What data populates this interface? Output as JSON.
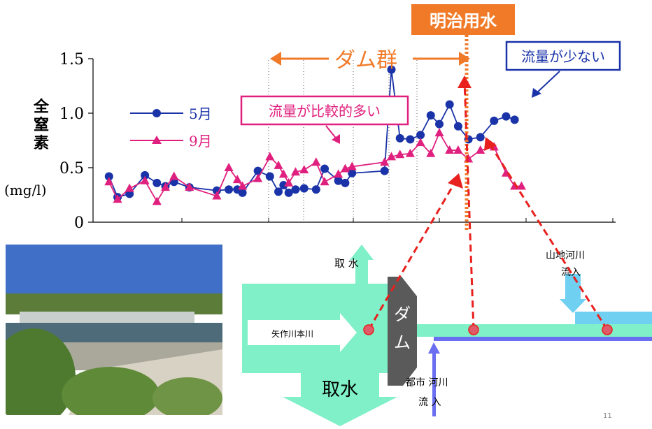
{
  "slide": {
    "page_number": "11"
  },
  "chart_data": {
    "type": "line",
    "ylabel_main": "全窒素",
    "ylabel_unit": "(mg/l)",
    "ylim": [
      0,
      1.5
    ],
    "yticks": [
      "0",
      "0.5",
      "1.0",
      "1.5"
    ],
    "xlim": [
      0,
      30
    ],
    "grid": false,
    "legend_position": "left-middle",
    "series": [
      {
        "name": "5月",
        "color": "#1a33a8",
        "marker": "circle",
        "x": [
          0.4,
          0.9,
          1.6,
          2.5,
          3.2,
          3.7,
          4.2,
          5.1,
          6.7,
          7.4,
          7.9,
          8.2,
          9.1,
          9.8,
          10.3,
          10.6,
          10.9,
          11.3,
          11.8,
          12.5,
          13.0,
          13.8,
          14.2,
          14.6,
          16.5,
          16.9,
          17.4,
          18.0,
          18.6,
          19.2,
          19.7,
          20.3,
          20.8,
          21.4,
          22.1,
          22.9,
          23.6,
          24.1
        ],
        "values": [
          0.42,
          0.23,
          0.26,
          0.43,
          0.36,
          0.33,
          0.37,
          0.32,
          0.29,
          0.3,
          0.3,
          0.27,
          0.47,
          0.42,
          0.28,
          0.34,
          0.27,
          0.3,
          0.31,
          0.3,
          0.49,
          0.38,
          0.36,
          0.45,
          0.47,
          1.4,
          0.77,
          0.76,
          0.8,
          0.98,
          0.9,
          1.08,
          0.88,
          0.76,
          0.78,
          0.93,
          0.97,
          0.94
        ]
      },
      {
        "name": "9月",
        "color": "#e0207e",
        "marker": "triangle",
        "x": [
          0.4,
          0.9,
          1.6,
          2.5,
          3.2,
          3.7,
          4.2,
          5.1,
          6.7,
          7.4,
          7.9,
          8.2,
          9.1,
          9.8,
          10.3,
          10.6,
          10.9,
          11.3,
          11.8,
          12.5,
          13.0,
          13.8,
          14.2,
          14.6,
          16.5,
          16.9,
          17.4,
          18.0,
          18.6,
          19.2,
          19.7,
          20.3,
          20.8,
          21.4,
          22.1,
          22.9,
          23.6,
          24.1,
          24.5
        ],
        "values": [
          0.37,
          0.21,
          0.31,
          0.38,
          0.19,
          0.32,
          0.42,
          0.32,
          0.24,
          0.5,
          0.39,
          0.33,
          0.4,
          0.6,
          0.52,
          0.44,
          0.36,
          0.46,
          0.48,
          0.55,
          0.37,
          0.44,
          0.49,
          0.51,
          0.55,
          0.6,
          0.62,
          0.63,
          0.73,
          0.63,
          0.82,
          0.66,
          0.66,
          0.58,
          0.66,
          0.69,
          0.45,
          0.33,
          0.33
        ]
      }
    ],
    "annotations": {
      "dam_group": "ダム群",
      "meiji_canal": "明治用水",
      "low_flow": "流量が少ない",
      "relatively_high_flow": "流量が比較的多い"
    }
  },
  "diagram": {
    "main_river": "矢作川本川",
    "dam": "ダム",
    "withdrawal_big": "取水",
    "withdrawal_top": "取 水",
    "mountain_inflow": "山地河川\n流入",
    "urban_inflow": "都市 河川\n流 入"
  }
}
